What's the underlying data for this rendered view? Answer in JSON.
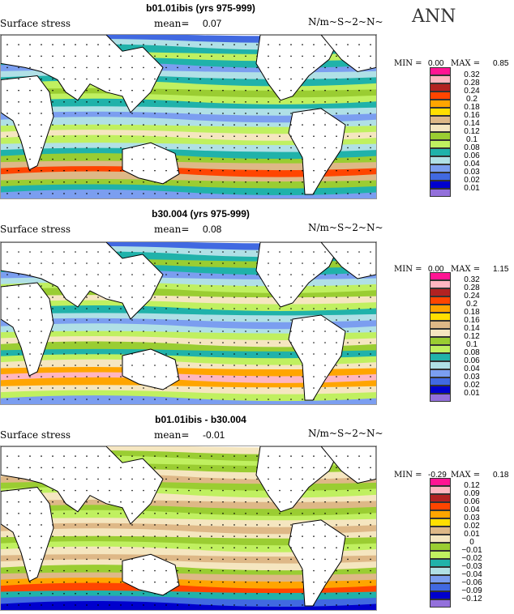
{
  "season": "ANN",
  "colorbar_colors": [
    "#9370db",
    "#0000cd",
    "#4169e1",
    "#7b9ef0",
    "#b0e0e6",
    "#20b2aa",
    "#c0f060",
    "#9acd32",
    "#f5e6c0",
    "#deb887",
    "#ffdf00",
    "#ffa500",
    "#ff4500",
    "#b22222",
    "#ffb6c1",
    "#ff1493"
  ],
  "panels": [
    {
      "title": "b01.01ibis (yrs 975-999)",
      "variable": "Surface stress",
      "mean_label": "mean=",
      "mean": "0.07",
      "units": "N/m~S~2~N~",
      "min_label": "MIN =",
      "min": "0.00",
      "max_label": "MAX =",
      "max": "0.85",
      "levels": [
        "0.01",
        "0.02",
        "0.03",
        "0.04",
        "0.06",
        "0.08",
        "0.1",
        "0.12",
        "0.14",
        "0.16",
        "0.18",
        "0.2",
        "0.24",
        "0.28",
        "0.32"
      ]
    },
    {
      "title": "b30.004 (yrs 975-999)",
      "variable": "Surface stress",
      "mean_label": "mean=",
      "mean": "0.08",
      "units": "N/m~S~2~N~",
      "min_label": "MIN =",
      "min": "0.00",
      "max_label": "MAX =",
      "max": "1.15",
      "levels": [
        "0.01",
        "0.02",
        "0.03",
        "0.04",
        "0.06",
        "0.08",
        "0.1",
        "0.12",
        "0.14",
        "0.16",
        "0.18",
        "0.2",
        "0.24",
        "0.28",
        "0.32"
      ]
    },
    {
      "title": "b01.01ibis - b30.004",
      "variable": "Surface stress",
      "mean_label": "mean=",
      "mean": "-0.01",
      "units": "N/m~S~2~N~",
      "min_label": "MIN =",
      "min": "-0.29",
      "max_label": "MAX =",
      "max": "0.18",
      "levels": [
        "−0.12",
        "−0.09",
        "−0.06",
        "−0.04",
        "−0.03",
        "−0.02",
        "−0.01",
        "0",
        "0.01",
        "0.02",
        "0.03",
        "0.04",
        "0.06",
        "0.09",
        "0.12"
      ]
    }
  ]
}
